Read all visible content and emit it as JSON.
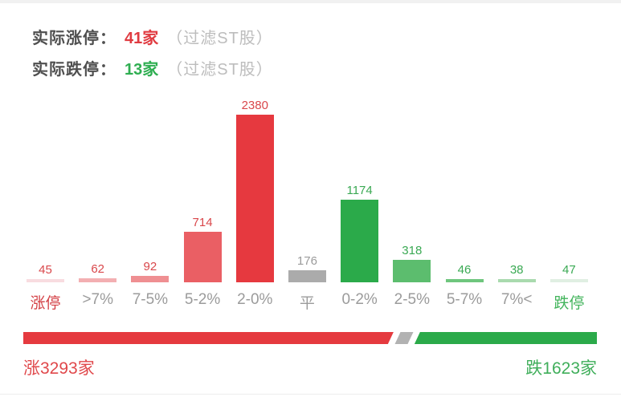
{
  "page": {
    "background": "#ffffff",
    "top_strip_color": "#f1f1f1",
    "divider_color": "#ededed"
  },
  "header": {
    "label_color": "#4f4f4f",
    "note_color": "#bdbdbd",
    "rows": [
      {
        "label": "实际涨停：",
        "value": "41家",
        "note": "（过滤ST股）",
        "value_color": "#e03b41"
      },
      {
        "label": "实际跌停：",
        "value": "13家",
        "note": "（过滤ST股）",
        "value_color": "#2fae51"
      }
    ]
  },
  "chart_data": {
    "type": "bar",
    "title": "",
    "xlabel": "",
    "ylabel": "",
    "ylim": [
      0,
      2380
    ],
    "grid": false,
    "legend": false,
    "categories": [
      "涨停",
      ">7%",
      "7-5%",
      "5-2%",
      "2-0%",
      "平",
      "0-2%",
      "2-5%",
      "5-7%",
      "7%<",
      "跌停"
    ],
    "values": [
      45,
      62,
      92,
      714,
      2380,
      176,
      1174,
      318,
      46,
      38,
      47
    ],
    "bar_colors": [
      "#f8dce0",
      "#f3afb2",
      "#ef8f92",
      "#ea5f64",
      "#e6393f",
      "#ababab",
      "#2baa4a",
      "#5cbd6e",
      "#6fc67e",
      "#a9daae",
      "#e0efe2"
    ],
    "value_colors": [
      "#d9474b",
      "#d9474b",
      "#d9474b",
      "#d9474b",
      "#d9474b",
      "#9b9b9b",
      "#3aa953",
      "#3aa953",
      "#3aa953",
      "#3aa953",
      "#3aa953"
    ],
    "category_colors": [
      "#d33f44",
      "#9b9b9b",
      "#9b9b9b",
      "#9b9b9b",
      "#9b9b9b",
      "#9b9b9b",
      "#9b9b9b",
      "#9b9b9b",
      "#9b9b9b",
      "#9b9b9b",
      "#43b45c"
    ]
  },
  "gauge": {
    "up_value": 3293,
    "flat_value": 176,
    "down_value": 1623,
    "up_label": "涨3293家",
    "down_label": "跌1623家",
    "up_color": "#e53a3f",
    "flat_color": "#b2b2b2",
    "down_color": "#2baa4a",
    "up_label_color": "#e0484b",
    "down_label_color": "#3fae5a"
  }
}
